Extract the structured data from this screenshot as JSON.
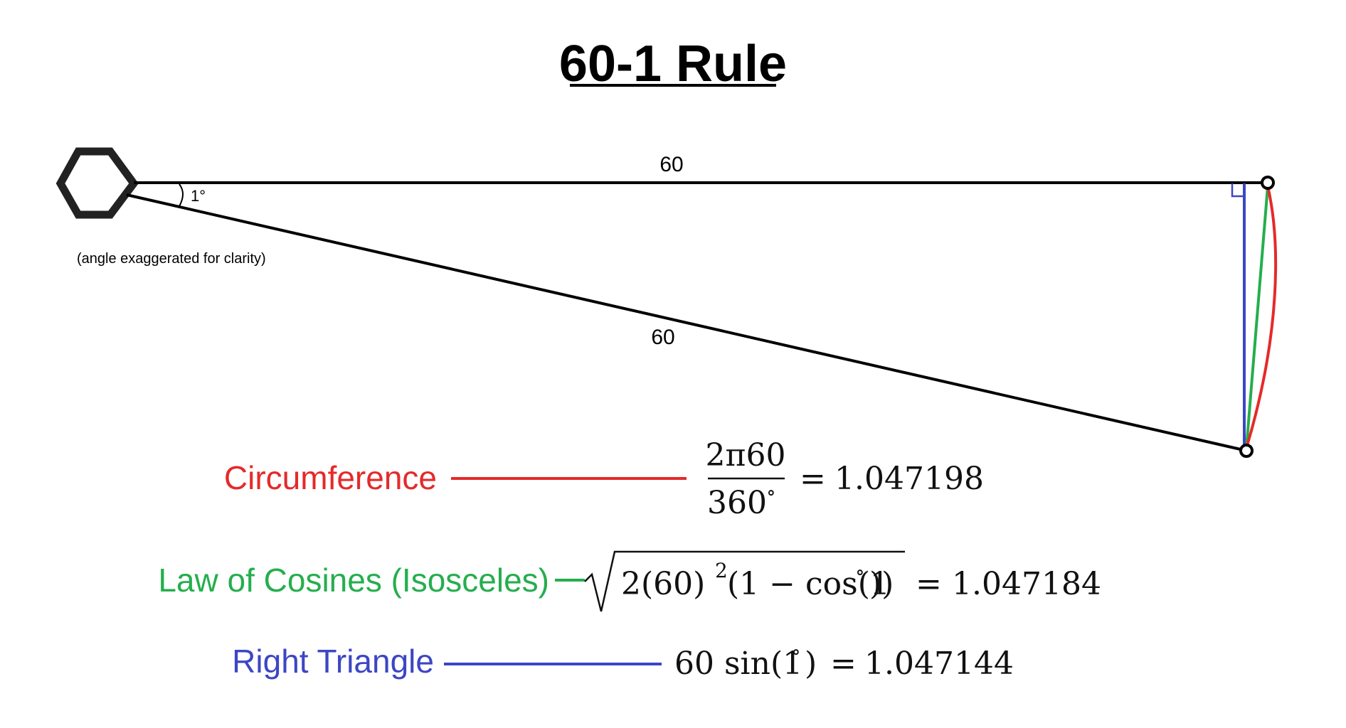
{
  "title": "60-1 Rule",
  "colors": {
    "line": "#000000",
    "circumference": "#e52a2a",
    "law_of_cosines": "#25ae4d",
    "right_triangle": "#3c46c4"
  },
  "diagram": {
    "top_side_label": "60",
    "bottom_side_label": "60",
    "angle_label": "1°",
    "note": "(angle exaggerated for clarity)",
    "observer_icon": "hexagon-icon"
  },
  "methods": [
    {
      "name": "Circumference",
      "formula": {
        "numerator": "2π60",
        "denominator": "360",
        "degree": "∘",
        "equals": "=",
        "result": "1.047198"
      }
    },
    {
      "name": "Law of Cosines (Isosceles)",
      "formula": {
        "radical_expr": "2(60)",
        "exponent": "2",
        "tail": "(1 − cos(1",
        "degree": "∘",
        "close": "))",
        "equals": "=",
        "result": "1.047184"
      }
    },
    {
      "name": "Right Triangle",
      "formula": {
        "expr": "60 sin(1",
        "degree": "∘",
        "close": ")",
        "equals": "=",
        "result": "1.047144"
      }
    }
  ]
}
